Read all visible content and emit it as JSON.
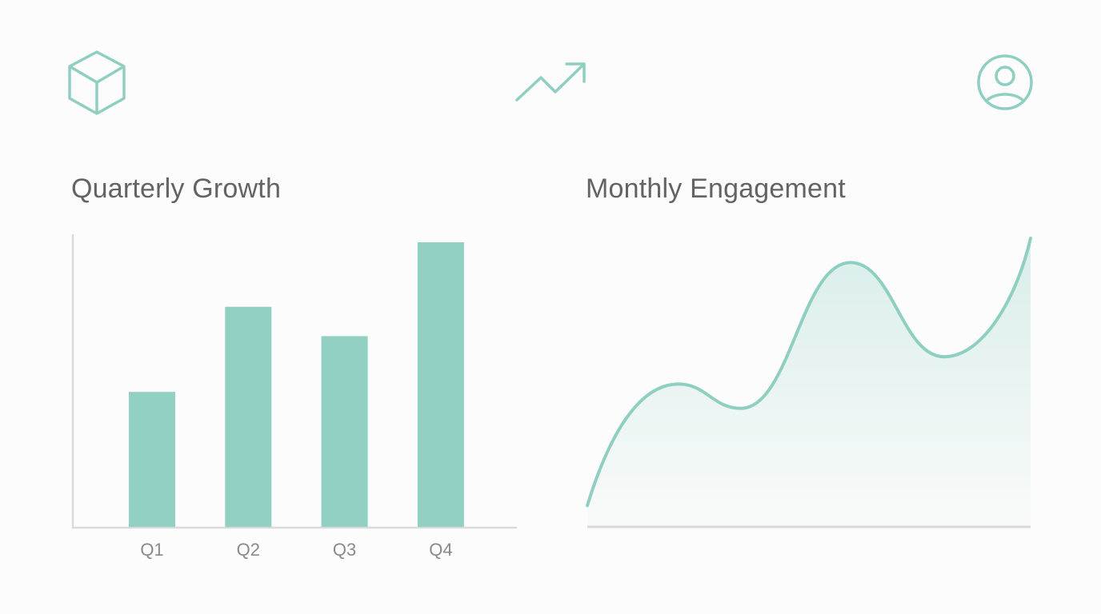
{
  "colors": {
    "accent": "#8fcfc2",
    "bar_fill": "#93d0c4",
    "axis": "#d9d9d9",
    "title_text": "#636363",
    "tick_text": "#8a8a8a",
    "background": "#fcfcfc"
  },
  "header": {
    "icons": [
      {
        "name": "cube-icon",
        "position": "left"
      },
      {
        "name": "trending-up-icon",
        "position": "center"
      },
      {
        "name": "user-profile-icon",
        "position": "right"
      }
    ]
  },
  "left_panel": {
    "title": "Quarterly Growth"
  },
  "right_panel": {
    "title": "Monthly Engagement"
  },
  "chart_data": [
    {
      "type": "bar",
      "title": "Quarterly Growth",
      "categories": [
        "Q1",
        "Q2",
        "Q3",
        "Q4"
      ],
      "values": [
        46,
        75,
        65,
        97
      ],
      "xlabel": "",
      "ylabel": "",
      "ylim": [
        0,
        100
      ],
      "grid": false,
      "legend": null,
      "color": "#93d0c4"
    },
    {
      "type": "area",
      "title": "Monthly Engagement",
      "x": [
        0,
        1,
        2,
        3,
        4,
        5
      ],
      "values": [
        7,
        47,
        39,
        87,
        56,
        95
      ],
      "xlabel": "",
      "ylabel": "",
      "ylim": [
        0,
        100
      ],
      "grid": false,
      "legend": null,
      "color": "#8fcfc2",
      "note": "Unlabeled smooth area curve; values estimated relative to plot height"
    }
  ]
}
